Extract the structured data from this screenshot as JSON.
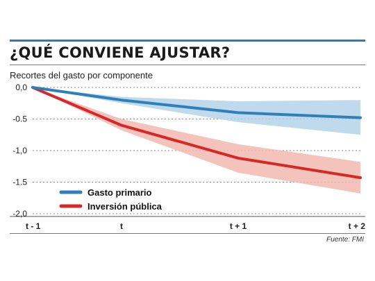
{
  "header": {
    "title": "¿QUÉ CONVIENE AJUSTAR?",
    "subtitle": "Recortes del gasto por componente"
  },
  "footer": {
    "source": "Fuente: FMI"
  },
  "colors": {
    "gasto_line": "#2f7fb8",
    "gasto_band": "#b4d2ea",
    "inversion_line": "#d62828",
    "inversion_band": "#f2b8b0",
    "grid": "#888888",
    "top_rule": "#2b7bb9"
  },
  "chart_data": {
    "type": "line",
    "title": "",
    "xlabel": "",
    "ylabel": "",
    "categories": [
      "t - 1",
      "t",
      "t + 1",
      "t + 2"
    ],
    "ylim": [
      -2.0,
      0.0
    ],
    "yticks": [
      "0,0",
      "-0.5",
      "-1,0",
      "-1.5",
      "-2,0"
    ],
    "ytick_values": [
      0.0,
      -0.5,
      -1.0,
      -1.5,
      -2.0
    ],
    "grid": "horizontal dotted",
    "legend": "bottom-left",
    "series": [
      {
        "name": "Gasto primario",
        "values": [
          0.0,
          -0.2,
          -0.4,
          -0.48
        ],
        "band_upper": [
          0.0,
          -0.15,
          -0.22,
          -0.2
        ],
        "band_lower": [
          0.0,
          -0.25,
          -0.55,
          -0.75
        ]
      },
      {
        "name": "Inversión pública",
        "values": [
          0.0,
          -0.6,
          -1.12,
          -1.43
        ],
        "band_upper": [
          0.0,
          -0.5,
          -0.9,
          -1.18
        ],
        "band_lower": [
          0.0,
          -0.68,
          -1.35,
          -1.68
        ]
      }
    ]
  }
}
